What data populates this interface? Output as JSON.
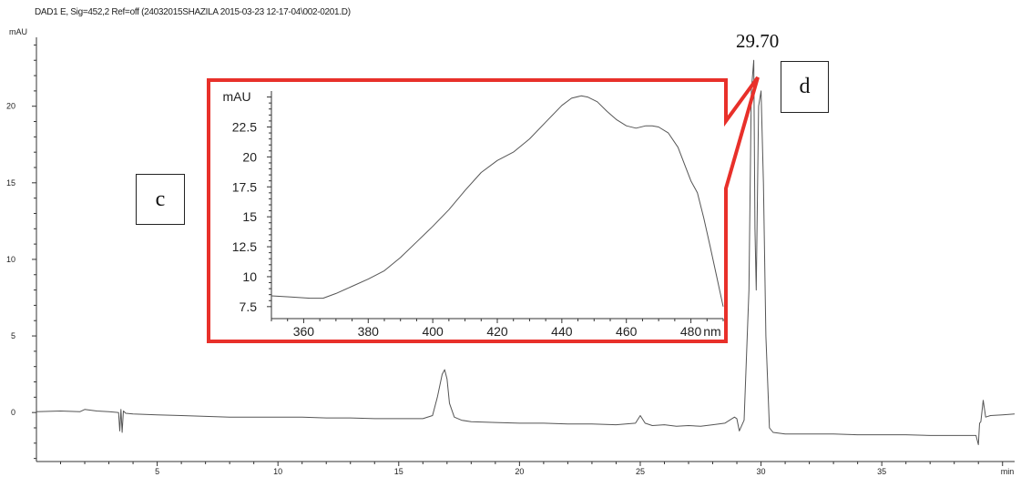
{
  "header": "DAD1 E, Sig=452,2 Ref=off (24032015SHAZILA 2015-03-23 12-17-04\\002-0201.D)",
  "panel_labels": {
    "c": "c",
    "d": "d"
  },
  "peak_label": "29.70",
  "colors": {
    "trace": "#555555",
    "highlight": "#e8302a",
    "axis": "#333333"
  },
  "chart_data": [
    {
      "type": "line",
      "title": "",
      "xlabel": "min",
      "ylabel": "mAU",
      "xlim": [
        0,
        40.5
      ],
      "ylim": [
        -3.2,
        24.5
      ],
      "xticks": [
        5,
        10,
        15,
        20,
        25,
        30,
        35
      ],
      "yticks": [
        0,
        5,
        10,
        15,
        20
      ],
      "series": [
        {
          "x": [
            0,
            1,
            1.8,
            2,
            2.5,
            3,
            3.4,
            3.45,
            3.5,
            3.55,
            3.6,
            3.7,
            4,
            5,
            6,
            7,
            8,
            9,
            10,
            11,
            12,
            13,
            14,
            15,
            16,
            16.4,
            16.6,
            16.8,
            16.9,
            17.0,
            17.1,
            17.3,
            17.6,
            18,
            19,
            20,
            21,
            22,
            23,
            24,
            24.8,
            25.0,
            25.2,
            25.5,
            26,
            26.5,
            27,
            27.5,
            28,
            28.5,
            28.9,
            29.0,
            29.1,
            29.3,
            29.5,
            29.6,
            29.7,
            29.75,
            29.8,
            29.9,
            30.0,
            30.1,
            30.2,
            30.35,
            30.5,
            31,
            32,
            33,
            34,
            35,
            36,
            37,
            38,
            38.9,
            39.0,
            39.05,
            39.1,
            39.2,
            39.3,
            39.5,
            40,
            40.5
          ],
          "y": [
            0.05,
            0.1,
            0.05,
            0.2,
            0.1,
            0.05,
            0,
            -1.2,
            0.2,
            -1.3,
            0.1,
            -0.05,
            -0.1,
            -0.15,
            -0.2,
            -0.25,
            -0.3,
            -0.3,
            -0.3,
            -0.3,
            -0.35,
            -0.35,
            -0.4,
            -0.4,
            -0.4,
            -0.2,
            1.0,
            2.5,
            2.8,
            2.2,
            0.6,
            -0.3,
            -0.5,
            -0.6,
            -0.65,
            -0.7,
            -0.7,
            -0.75,
            -0.75,
            -0.8,
            -0.7,
            -0.2,
            -0.7,
            -0.85,
            -0.8,
            -0.9,
            -0.85,
            -0.9,
            -0.8,
            -0.7,
            -0.3,
            -0.4,
            -1.2,
            -0.5,
            8,
            21,
            23,
            12,
            8,
            20,
            21,
            15,
            5,
            -1.0,
            -1.3,
            -1.4,
            -1.4,
            -1.4,
            -1.45,
            -1.45,
            -1.45,
            -1.5,
            -1.5,
            -1.5,
            -2.1,
            -0.7,
            -0.6,
            0.8,
            -0.3,
            -0.2,
            -0.15,
            -0.1
          ]
        }
      ]
    },
    {
      "type": "line",
      "title": "",
      "xlabel": "nm",
      "ylabel": "mAU",
      "xlim": [
        350,
        490
      ],
      "ylim": [
        6.5,
        25.5
      ],
      "xticks": [
        360,
        380,
        400,
        420,
        440,
        460,
        480
      ],
      "yticks": [
        7.5,
        10,
        12.5,
        15,
        17.5,
        20,
        22.5
      ],
      "series": [
        {
          "x": [
            350,
            356,
            362,
            366,
            370,
            375,
            380,
            385,
            390,
            395,
            400,
            405,
            410,
            415,
            420,
            425,
            430,
            435,
            440,
            443,
            446,
            448,
            451,
            454,
            457,
            460,
            463,
            466,
            468,
            470,
            473,
            476,
            478,
            480,
            482,
            484,
            486,
            488,
            490
          ],
          "y": [
            8.4,
            8.3,
            8.2,
            8.2,
            8.6,
            9.2,
            9.8,
            10.5,
            11.6,
            12.9,
            14.2,
            15.6,
            17.2,
            18.7,
            19.7,
            20.4,
            21.5,
            22.9,
            24.3,
            24.9,
            25.1,
            25.0,
            24.6,
            23.8,
            23.1,
            22.6,
            22.4,
            22.6,
            22.6,
            22.5,
            22.0,
            20.8,
            19.4,
            18.0,
            17.0,
            14.9,
            12.5,
            10.0,
            7.5
          ]
        }
      ]
    }
  ]
}
